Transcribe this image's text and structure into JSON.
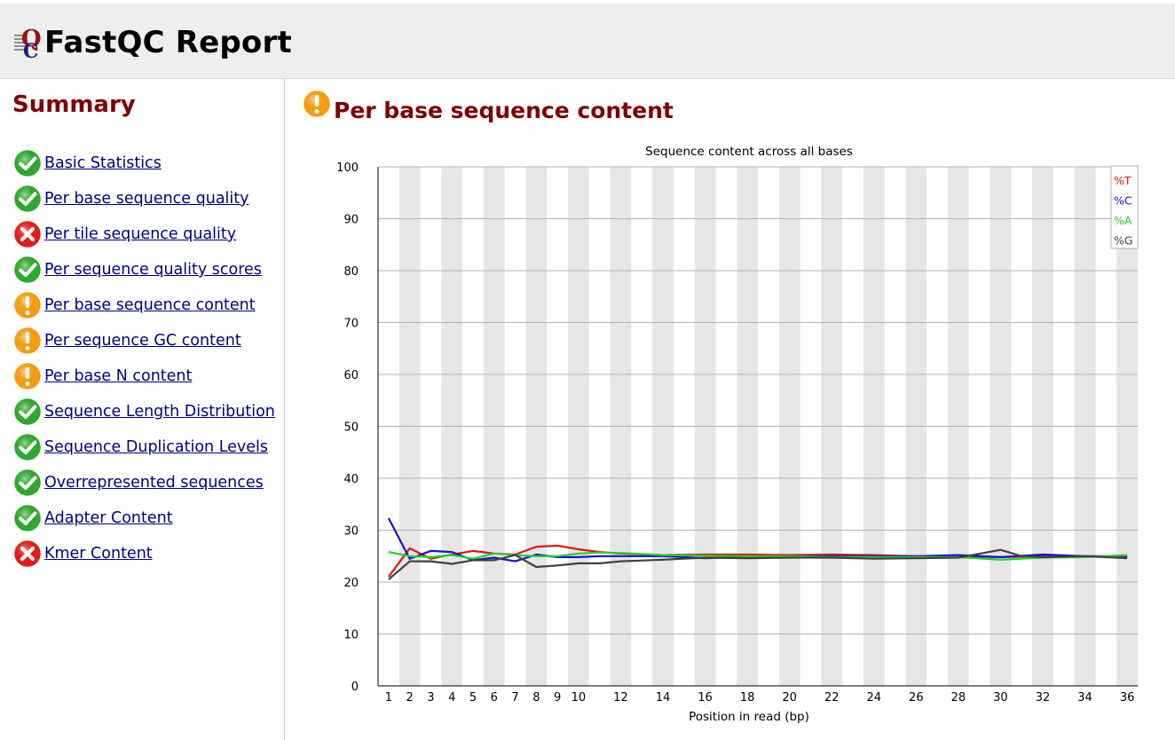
{
  "header": {
    "title": "FastQC Report"
  },
  "sidebar": {
    "title": "Summary",
    "items": [
      {
        "label": "Basic Statistics",
        "status": "pass"
      },
      {
        "label": "Per base sequence quality",
        "status": "pass"
      },
      {
        "label": "Per tile sequence quality",
        "status": "fail"
      },
      {
        "label": "Per sequence quality scores",
        "status": "pass"
      },
      {
        "label": "Per base sequence content",
        "status": "warn"
      },
      {
        "label": "Per sequence GC content",
        "status": "warn"
      },
      {
        "label": "Per base N content",
        "status": "warn"
      },
      {
        "label": "Sequence Length Distribution",
        "status": "pass"
      },
      {
        "label": "Sequence Duplication Levels",
        "status": "pass"
      },
      {
        "label": "Overrepresented sequences",
        "status": "pass"
      },
      {
        "label": "Adapter Content",
        "status": "pass"
      },
      {
        "label": "Kmer Content",
        "status": "fail"
      }
    ]
  },
  "main": {
    "heading": "Per base sequence content",
    "status": "warn"
  },
  "colors": {
    "pass": "#2ea82e",
    "warn": "#f39c12",
    "fail": "#e21b1b",
    "heading": "#800000",
    "link": "#000080"
  },
  "chart_data": {
    "type": "line",
    "title": "Sequence content across all bases",
    "xlabel": "Position in read (bp)",
    "ylabel": "",
    "ylim": [
      0,
      100
    ],
    "yticks": [
      0,
      10,
      20,
      30,
      40,
      50,
      60,
      70,
      80,
      90,
      100
    ],
    "categories": [
      "1",
      "2",
      "3",
      "4",
      "5",
      "6",
      "7",
      "8",
      "9",
      "10",
      "12",
      "14",
      "16",
      "18",
      "20",
      "22",
      "24",
      "26",
      "28",
      "30",
      "32",
      "34",
      "36"
    ],
    "xticks": [
      1,
      2,
      3,
      4,
      5,
      6,
      7,
      8,
      9,
      10,
      12,
      14,
      16,
      18,
      20,
      22,
      24,
      26,
      28,
      30,
      32,
      34,
      36
    ],
    "legend_position": "top-right",
    "series": [
      {
        "name": "%T",
        "color": "#e51010",
        "x": [
          1,
          2,
          3,
          4,
          5,
          6,
          7,
          8,
          9,
          10,
          11,
          12,
          14,
          16,
          18,
          20,
          22,
          24,
          26,
          28,
          30,
          32,
          34,
          36
        ],
        "values": [
          21.0,
          26.5,
          24.5,
          25.3,
          26.0,
          25.5,
          25.3,
          26.8,
          27.0,
          26.3,
          25.8,
          25.5,
          25.2,
          25.3,
          25.3,
          25.2,
          25.3,
          25.2,
          25.0,
          25.0,
          24.8,
          25.0,
          25.0,
          24.8
        ]
      },
      {
        "name": "%C",
        "color": "#1212d8",
        "x": [
          1,
          2,
          3,
          4,
          5,
          6,
          7,
          8,
          9,
          10,
          11,
          12,
          14,
          16,
          18,
          20,
          22,
          24,
          26,
          28,
          30,
          32,
          34,
          36
        ],
        "values": [
          32.3,
          24.5,
          26.0,
          25.8,
          24.2,
          24.7,
          24.0,
          25.3,
          24.8,
          24.8,
          25.0,
          25.0,
          25.0,
          24.6,
          24.9,
          25.0,
          25.0,
          25.0,
          25.0,
          25.2,
          24.8,
          25.3,
          25.0,
          25.0
        ]
      },
      {
        "name": "%A",
        "color": "#1ed41e",
        "x": [
          1,
          2,
          3,
          4,
          5,
          6,
          7,
          8,
          9,
          10,
          11,
          12,
          14,
          16,
          18,
          20,
          22,
          24,
          26,
          28,
          30,
          32,
          34,
          36
        ],
        "values": [
          25.8,
          25.0,
          24.8,
          25.2,
          24.5,
          25.5,
          25.2,
          25.0,
          25.0,
          25.5,
          25.7,
          25.6,
          25.2,
          25.1,
          25.0,
          25.0,
          24.8,
          24.8,
          24.8,
          24.8,
          24.3,
          24.7,
          24.8,
          25.2
        ]
      },
      {
        "name": "%G",
        "color": "#404040",
        "x": [
          1,
          2,
          3,
          4,
          5,
          6,
          7,
          8,
          9,
          10,
          11,
          12,
          14,
          16,
          18,
          20,
          22,
          24,
          26,
          28,
          30,
          31,
          32,
          34,
          36
        ],
        "values": [
          20.5,
          24.0,
          24.0,
          23.5,
          24.2,
          24.2,
          25.2,
          22.9,
          23.2,
          23.6,
          23.6,
          24.0,
          24.3,
          24.7,
          24.6,
          24.7,
          24.7,
          24.5,
          24.6,
          24.7,
          26.2,
          25.0,
          24.8,
          25.0,
          24.6
        ]
      }
    ]
  }
}
